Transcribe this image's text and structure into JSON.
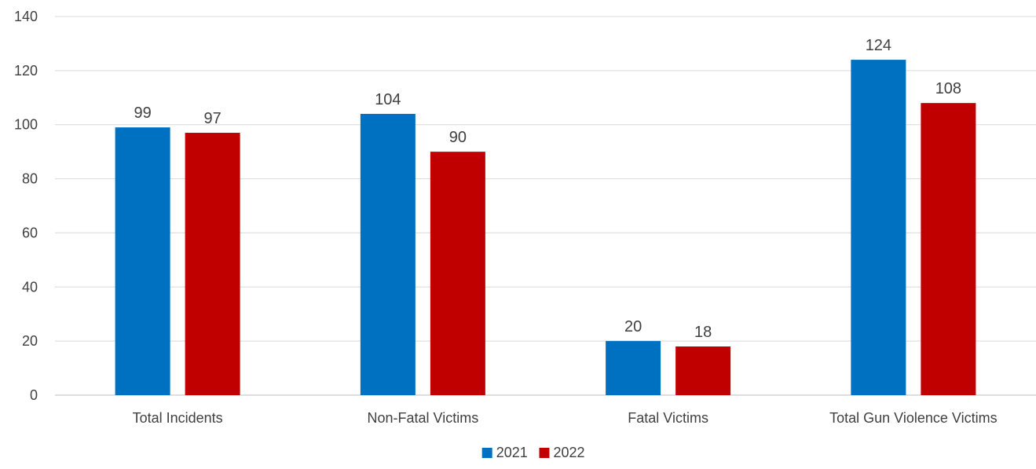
{
  "chart_data": {
    "type": "bar",
    "categories": [
      "Total Incidents",
      "Non-Fatal Victims",
      "Fatal Victims",
      "Total Gun Violence Victims"
    ],
    "series": [
      {
        "name": "2021",
        "color": "#0070c0",
        "values": [
          99,
          104,
          20,
          124
        ]
      },
      {
        "name": "2022",
        "color": "#c00000",
        "values": [
          97,
          90,
          18,
          108
        ]
      }
    ],
    "ylim": [
      0,
      140
    ],
    "yticks": [
      0,
      20,
      40,
      60,
      80,
      100,
      120,
      140
    ],
    "grid": true,
    "legend_position": "bottom",
    "data_labels": true,
    "title": "",
    "xlabel": "",
    "ylabel": ""
  }
}
